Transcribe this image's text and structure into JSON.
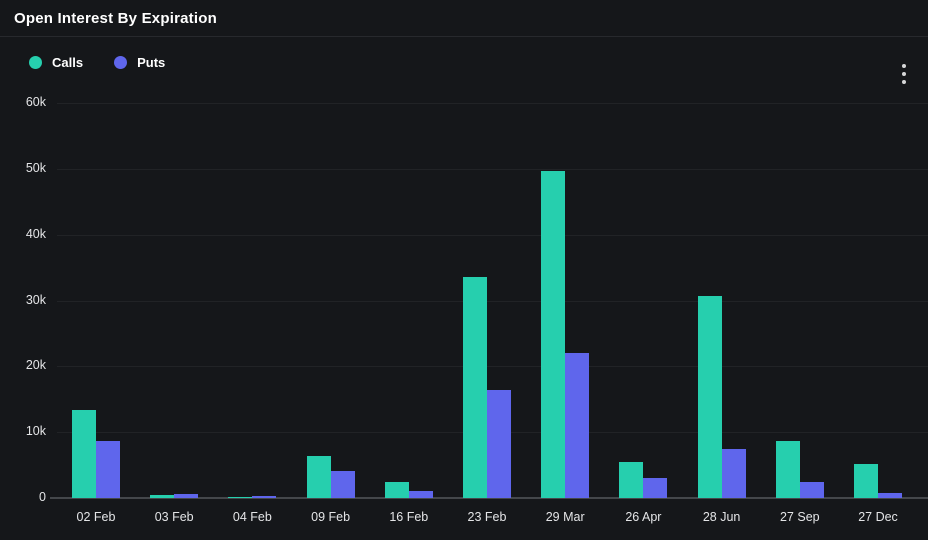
{
  "header": {
    "title": "Open Interest By Expiration"
  },
  "legend": {
    "items": [
      {
        "label": "Calls",
        "color": "#26cfae"
      },
      {
        "label": "Puts",
        "color": "#5f66ec"
      }
    ]
  },
  "menu": {
    "icon": "kebab-vertical"
  },
  "colors": {
    "background": "#15171a",
    "divider": "#27292d",
    "grid": "#212428",
    "axis_line": "#44474b",
    "text": "#e4e5e7",
    "calls": "#26cfae",
    "puts": "#5f66ec"
  },
  "chart_data": {
    "type": "bar",
    "title": "Open Interest By Expiration",
    "categories": [
      "02 Feb",
      "03 Feb",
      "04 Feb",
      "09 Feb",
      "16 Feb",
      "23 Feb",
      "29 Mar",
      "26 Apr",
      "28 Jun",
      "27 Sep",
      "27 Dec"
    ],
    "series": [
      {
        "name": "Calls",
        "color": "#26cfae",
        "values": [
          13300,
          400,
          100,
          6400,
          2500,
          33600,
          49700,
          5400,
          30700,
          8700,
          5100
        ]
      },
      {
        "name": "Puts",
        "color": "#5f66ec",
        "values": [
          8700,
          600,
          300,
          4100,
          1100,
          16400,
          22000,
          3000,
          7400,
          2500,
          700
        ]
      }
    ],
    "xlabel": "",
    "ylabel": "",
    "ylim": [
      0,
      60000
    ],
    "y_ticks": [
      0,
      10000,
      20000,
      30000,
      40000,
      50000,
      60000
    ],
    "y_tick_labels": [
      "0",
      "10k",
      "20k",
      "30k",
      "40k",
      "50k",
      "60k"
    ],
    "grid": true,
    "legend_position": "top-left",
    "bar_gap_within_group": 0
  }
}
